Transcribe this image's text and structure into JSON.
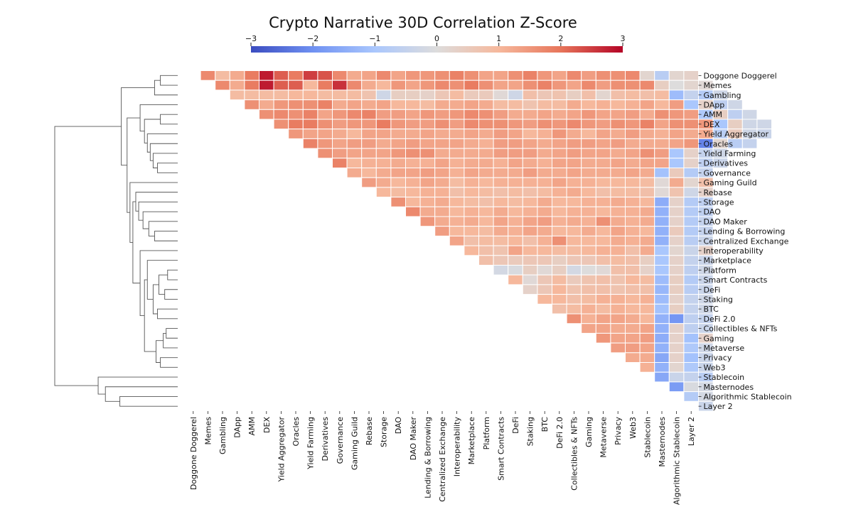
{
  "chart_data": {
    "type": "heatmap",
    "title": "Crypto Narrative 30D Correlation Z-Score",
    "labels": [
      "Doggone Doggerel",
      "Memes",
      "Gambling",
      "DApp",
      "AMM",
      "DEX",
      "Yield Aggregator",
      "Oracles",
      "Yield Farming",
      "Derivatives",
      "Governance",
      "Gaming Guild",
      "Rebase",
      "Storage",
      "DAO",
      "DAO Maker",
      "Lending & Borrowing",
      "Centralized Exchange",
      "Interoperability",
      "Marketplace",
      "Platform",
      "Smart Contracts",
      "DeFi",
      "Staking",
      "BTC",
      "DeFi 2.0",
      "Collectibles & NFTs",
      "Gaming",
      "Metaverse",
      "Privacy",
      "Web3",
      "Stablecoin",
      "Masternodes",
      "Algorithmic Stablecoin",
      "Layer 2"
    ],
    "color_scale": {
      "min": -3,
      "max": 3,
      "ticks": [
        -3,
        -2,
        -1,
        0,
        1,
        2,
        3
      ],
      "tick_labels": [
        "−3",
        "−2",
        "−1",
        "0",
        "1",
        "2",
        "3"
      ],
      "colormap": "coolwarm",
      "stops": [
        "#3b4cc0",
        "#6f91f2",
        "#aac7fd",
        "#dddcdc",
        "#f6b89c",
        "#e7755a",
        "#b40426"
      ]
    },
    "value_rows": [
      [
        1.7,
        0.9,
        1.2,
        1.9,
        2.8,
        2.2,
        1.9,
        2.5,
        2.3,
        1.7,
        1.2,
        1.3,
        1.7,
        1.3,
        1.5,
        1.5,
        1.6,
        1.8,
        1.6,
        1.3,
        1.3,
        1.6,
        1.8,
        1.5,
        1.3,
        1.7,
        1.4,
        1.6,
        1.6,
        1.7,
        0.2,
        -0.7,
        0.2,
        0.3
      ],
      [
        1.7,
        1.2,
        1.9,
        2.8,
        2.2,
        2.2,
        1.0,
        1.9,
        2.6,
        1.7,
        1.2,
        1.0,
        1.5,
        1.3,
        1.5,
        1.7,
        1.6,
        1.9,
        1.6,
        1.3,
        1.3,
        1.6,
        1.8,
        1.5,
        1.3,
        1.7,
        1.4,
        1.6,
        1.6,
        1.7,
        0.4,
        0.0,
        0.2,
        0.1
      ],
      [
        0.9,
        0.9,
        0.9,
        0.9,
        1.0,
        1.0,
        0.9,
        0.9,
        0.9,
        0.7,
        -0.3,
        0.4,
        0.4,
        0.3,
        0.6,
        0.9,
        0.5,
        0.5,
        0.1,
        -0.3,
        0.8,
        0.6,
        0.7,
        0.4,
        0.8,
        0.2,
        0.8,
        0.9,
        0.8,
        0.9,
        -1.2,
        -0.5,
        -0.8,
        -0.3
      ],
      [
        1.6,
        1.2,
        1.5,
        1.6,
        1.6,
        1.8,
        1.2,
        1.3,
        1.2,
        1.3,
        1.0,
        1.0,
        0.9,
        1.2,
        1.2,
        1.3,
        1.2,
        0.9,
        0.9,
        0.7,
        0.9,
        0.9,
        1.2,
        1.0,
        1.1,
        1.0,
        1.1,
        1.3,
        1.0,
        1.4,
        -1.0,
        0.3,
        -0.6,
        -0.3
      ],
      [
        1.6,
        1.7,
        1.6,
        1.8,
        1.3,
        1.5,
        1.7,
        1.8,
        1.4,
        1.4,
        1.3,
        1.5,
        1.4,
        1.5,
        1.7,
        1.6,
        1.4,
        1.2,
        1.2,
        1.3,
        1.2,
        1.3,
        1.5,
        1.3,
        1.3,
        1.4,
        1.2,
        1.6,
        1.5,
        1.4,
        -0.9,
        0.4,
        -0.6,
        -0.3
      ],
      [
        1.6,
        1.9,
        1.9,
        1.6,
        1.4,
        1.5,
        1.5,
        1.9,
        1.5,
        1.4,
        1.4,
        1.6,
        1.4,
        1.7,
        1.6,
        1.6,
        1.5,
        1.4,
        1.6,
        1.5,
        1.7,
        1.5,
        1.4,
        1.6,
        1.5,
        1.8,
        1.3,
        1.6,
        1.6,
        1.5,
        -1.0,
        0.4,
        -0.3,
        -0.3
      ],
      [
        1.5,
        1.3,
        1.3,
        1.2,
        1.0,
        1.3,
        1.3,
        1.2,
        1.2,
        1.3,
        1.2,
        1.2,
        1.3,
        1.2,
        1.4,
        1.3,
        1.0,
        1.1,
        1.5,
        1.2,
        1.0,
        1.3,
        1.2,
        1.4,
        1.2,
        1.1,
        1.3,
        1.2,
        1.2,
        -0.7,
        0.5,
        -0.3,
        -0.4
      ],
      [
        1.8,
        1.5,
        1.3,
        1.4,
        1.4,
        1.2,
        1.3,
        1.4,
        1.3,
        1.3,
        1.3,
        1.2,
        1.1,
        1.4,
        1.4,
        1.3,
        1.2,
        1.3,
        1.4,
        1.4,
        1.3,
        1.4,
        1.2,
        1.2,
        1.2,
        1.3,
        1.5,
        -2.2,
        0.2,
        -0.7,
        -0.5
      ],
      [
        1.6,
        1.4,
        1.3,
        1.3,
        1.3,
        1.5,
        1.6,
        1.6,
        1.2,
        1.2,
        1.2,
        1.2,
        1.4,
        1.4,
        1.4,
        1.2,
        1.3,
        1.4,
        1.3,
        1.3,
        1.2,
        1.3,
        1.6,
        1.4,
        -1.0,
        0.3,
        -0.5,
        -0.3
      ],
      [
        1.8,
        1.0,
        1.1,
        1.1,
        1.2,
        1.1,
        1.1,
        1.3,
        1.1,
        1.2,
        1.2,
        1.1,
        1.3,
        1.2,
        1.1,
        1.3,
        1.3,
        1.2,
        1.2,
        1.3,
        1.2,
        1.3,
        1.3,
        -1.0,
        0.3,
        -0.6,
        -0.4
      ],
      [
        1.2,
        1.0,
        1.2,
        1.3,
        1.3,
        1.4,
        1.3,
        1.1,
        1.3,
        1.2,
        1.2,
        1.2,
        1.4,
        1.2,
        1.2,
        1.3,
        1.2,
        1.2,
        1.2,
        1.3,
        1.2,
        -1.1,
        0.5,
        -0.8,
        -0.5
      ],
      [
        1.4,
        1.2,
        1.0,
        1.1,
        1.3,
        1.2,
        0.9,
        1.1,
        1.0,
        1.1,
        1.1,
        1.1,
        1.1,
        1.3,
        1.1,
        1.1,
        1.0,
        1.0,
        1.0,
        0.9,
        0.1,
        1.2,
        0.2,
        0.8
      ],
      [
        1.0,
        0.9,
        1.0,
        1.1,
        1.1,
        0.8,
        1.0,
        0.9,
        0.8,
        0.9,
        0.8,
        0.9,
        1.1,
        1.2,
        1.0,
        0.8,
        0.9,
        0.9,
        0.8,
        0.1,
        0.7,
        -0.3,
        0.3
      ],
      [
        1.6,
        1.0,
        1.1,
        1.2,
        1.0,
        0.9,
        0.8,
        1.0,
        0.9,
        1.0,
        1.2,
        1.0,
        1.0,
        1.1,
        1.1,
        1.2,
        1.1,
        1.0,
        -1.5,
        0.3,
        -0.8,
        -0.6
      ],
      [
        1.7,
        1.2,
        1.2,
        1.0,
        1.1,
        1.0,
        1.2,
        1.0,
        1.1,
        1.2,
        1.0,
        1.1,
        1.1,
        1.0,
        1.1,
        1.1,
        1.2,
        -1.4,
        0.3,
        -0.8,
        -0.6
      ],
      [
        1.5,
        1.2,
        1.1,
        1.2,
        1.0,
        1.3,
        1.1,
        1.3,
        1.4,
        1.1,
        1.2,
        1.1,
        1.6,
        1.2,
        1.1,
        1.2,
        -1.4,
        0.3,
        -0.8,
        -0.5
      ],
      [
        1.4,
        1.0,
        1.0,
        0.9,
        1.2,
        1.1,
        1.3,
        1.2,
        1.0,
        1.0,
        1.2,
        1.0,
        1.3,
        1.1,
        1.0,
        -1.4,
        0.5,
        -0.8,
        -0.5
      ],
      [
        1.3,
        0.8,
        0.9,
        0.9,
        1.0,
        0.8,
        1.1,
        1.6,
        1.0,
        1.0,
        1.0,
        1.2,
        1.1,
        1.2,
        -1.4,
        0.3,
        -0.7,
        -0.4
      ],
      [
        1.0,
        0.8,
        0.7,
        1.3,
        1.0,
        1.0,
        0.9,
        0.9,
        1.0,
        1.1,
        1.1,
        0.8,
        1.2,
        -1.0,
        0.2,
        -0.4,
        0.3
      ],
      [
        0.8,
        0.6,
        0.5,
        0.6,
        0.6,
        0.4,
        0.6,
        0.6,
        0.8,
        0.9,
        0.8,
        0.4,
        -1.0,
        0.3,
        -0.5,
        -0.4
      ],
      [
        -0.2,
        -0.1,
        0.4,
        0.1,
        0.4,
        -0.2,
        0.0,
        0.1,
        0.8,
        0.8,
        0.3,
        -1.0,
        0.3,
        -0.6,
        -0.3
      ],
      [
        1.0,
        0.1,
        0.6,
        0.9,
        0.5,
        0.7,
        0.8,
        0.7,
        1.0,
        0.9,
        -1.2,
        0.4,
        -0.8,
        -0.4
      ],
      [
        0.3,
        0.6,
        1.0,
        0.7,
        0.8,
        0.8,
        0.7,
        0.8,
        0.8,
        -1.3,
        0.4,
        -0.7,
        -0.4
      ],
      [
        1.0,
        1.0,
        0.8,
        0.9,
        1.1,
        1.1,
        1.0,
        1.1,
        -1.2,
        0.3,
        -0.5,
        -0.3
      ],
      [
        0.8,
        0.9,
        1.1,
        0.9,
        1.1,
        1.0,
        1.0,
        -1.1,
        0.4,
        -0.5,
        -0.3
      ],
      [
        1.6,
        1.1,
        1.3,
        1.3,
        1.2,
        1.0,
        -1.4,
        -1.9,
        -0.6,
        -0.5
      ],
      [
        1.3,
        1.3,
        1.2,
        1.2,
        1.3,
        -1.4,
        0.3,
        -0.6,
        -0.4
      ],
      [
        1.5,
        1.3,
        1.3,
        1.4,
        -1.5,
        0.3,
        -1.1,
        0.3
      ],
      [
        1.4,
        1.4,
        1.3,
        -1.4,
        0.3,
        -0.9,
        -0.3
      ],
      [
        1.2,
        1.2,
        -1.6,
        0.3,
        -1.1,
        -0.4
      ],
      [
        1.1,
        -1.4,
        0.2,
        -0.9,
        -0.4
      ],
      [
        -1.6,
        -0.4,
        -0.5,
        -0.7
      ],
      [
        -1.8,
        -0.1,
        -0.2
      ],
      [
        -0.8,
        -0.2
      ],
      [
        -0.4
      ],
      []
    ],
    "dendrogram": {
      "leaf_order": [
        "Doggone Doggerel",
        "Memes",
        "Gambling",
        "DApp",
        "AMM",
        "DEX",
        "Yield Aggregator",
        "Oracles",
        "Yield Farming",
        "Derivatives",
        "Governance",
        "Gaming Guild",
        "Rebase",
        "Storage",
        "DAO",
        "DAO Maker",
        "Lending & Borrowing",
        "Centralized Exchange",
        "Interoperability",
        "Marketplace",
        "Platform",
        "Smart Contracts",
        "DeFi",
        "Staking",
        "BTC",
        "DeFi 2.0",
        "Collectibles & NFTs",
        "Gaming",
        "Metaverse",
        "Privacy",
        "Web3",
        "Stablecoin",
        "Masternodes",
        "Algorithmic Stablecoin",
        "Layer 2"
      ],
      "merges": [
        [
          0,
          1,
          0.12
        ],
        [
          35,
          2,
          0.16
        ],
        [
          26,
          27,
          0.08
        ],
        [
          37,
          28,
          0.1
        ],
        [
          29,
          30,
          0.12
        ],
        [
          38,
          39,
          0.15
        ],
        [
          20,
          21,
          0.07
        ],
        [
          22,
          23,
          0.09
        ],
        [
          41,
          42,
          0.13
        ],
        [
          24,
          25,
          0.14
        ],
        [
          43,
          44,
          0.17
        ],
        [
          19,
          45,
          0.21
        ],
        [
          40,
          46,
          0.23
        ],
        [
          18,
          47,
          0.26
        ],
        [
          16,
          17,
          0.16
        ],
        [
          15,
          49,
          0.2
        ],
        [
          14,
          50,
          0.24
        ],
        [
          13,
          51,
          0.27
        ],
        [
          12,
          52,
          0.29
        ],
        [
          48,
          53,
          0.31
        ],
        [
          11,
          54,
          0.33
        ],
        [
          9,
          10,
          0.14
        ],
        [
          56,
          8,
          0.17
        ],
        [
          57,
          7,
          0.19
        ],
        [
          58,
          6,
          0.21
        ],
        [
          4,
          5,
          0.12
        ],
        [
          59,
          60,
          0.23
        ],
        [
          3,
          61,
          0.26
        ],
        [
          62,
          55,
          0.35
        ],
        [
          36,
          63,
          0.39
        ],
        [
          33,
          34,
          0.4
        ],
        [
          32,
          65,
          0.5
        ],
        [
          31,
          66,
          0.55
        ],
        [
          64,
          67,
          0.85
        ]
      ]
    }
  }
}
